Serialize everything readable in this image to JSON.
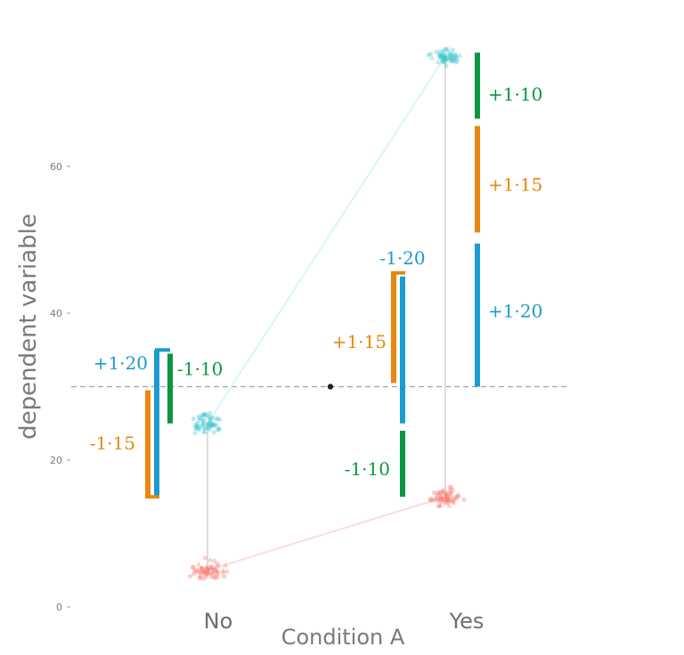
{
  "chart_data": {
    "type": "scatter",
    "title": "",
    "xlabel": "Condition A",
    "ylabel": "dependent variable",
    "ylim": [
      0,
      75
    ],
    "y_ticks": [
      0,
      20,
      40,
      60
    ],
    "y_tick_labels": [
      "0",
      "20",
      "40",
      "60"
    ],
    "categories": [
      "No",
      "Yes"
    ],
    "grid": false,
    "reference_line": {
      "y": 30,
      "style": "dashed",
      "color": "#a0a0a0"
    },
    "center_point": {
      "y": 30,
      "color": "#222222"
    },
    "groups": [
      {
        "category": "No",
        "color": "#f8766d",
        "mean": 5
      },
      {
        "category": "No",
        "color": "#3fc7cf",
        "mean": 25
      },
      {
        "category": "Yes",
        "color": "#f8766d",
        "mean": 15
      },
      {
        "category": "Yes",
        "color": "#3fc7cf",
        "mean": 75
      }
    ],
    "effect_bars": [
      {
        "label": "-1·15",
        "color": "#e8860e",
        "y0": 15,
        "y1": 29.5,
        "lane": "no-outer"
      },
      {
        "label": "+1·20",
        "color": "#1a9bd1",
        "y0": 15,
        "y1": 35,
        "lane": "no-middle"
      },
      {
        "label": "-1·10",
        "color": "#0a9642",
        "y0": 25,
        "y1": 34.5,
        "lane": "no-inner"
      },
      {
        "label": "+1·15",
        "color": "#e8860e",
        "y0": 30.5,
        "y1": 45.5,
        "lane": "mid-left"
      },
      {
        "label": "-1·20",
        "color": "#1a9bd1",
        "y0": 25,
        "y1": 45,
        "lane": "mid-right"
      },
      {
        "label": "-1·10",
        "color": "#0a9642",
        "y0": 15,
        "y1": 24,
        "lane": "mid-right"
      },
      {
        "label": "+1·20",
        "color": "#1a9bd1",
        "y0": 30,
        "y1": 49.5,
        "lane": "yes"
      },
      {
        "label": "+1·15",
        "color": "#e8860e",
        "y0": 51,
        "y1": 65.5,
        "lane": "yes"
      },
      {
        "label": "+1·10",
        "color": "#0a9642",
        "y0": 66.5,
        "y1": 75.5,
        "lane": "yes"
      }
    ]
  }
}
